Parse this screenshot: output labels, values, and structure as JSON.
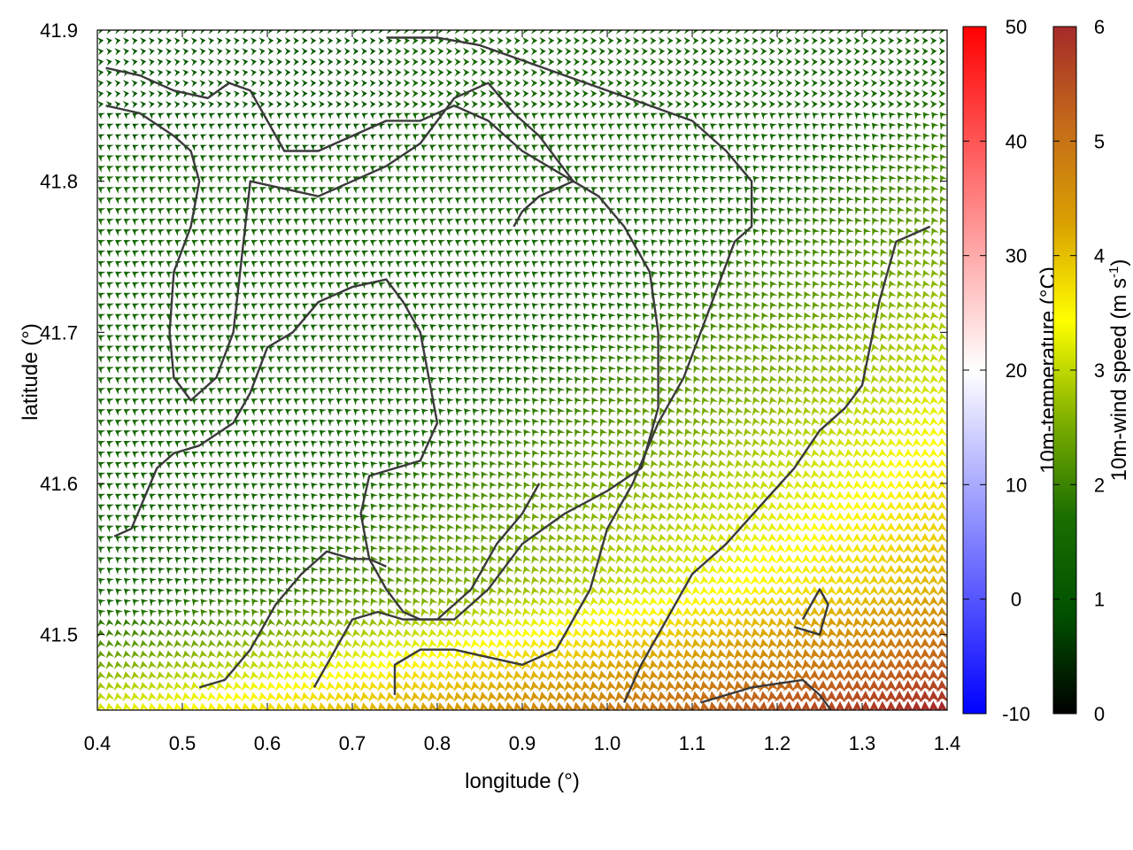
{
  "chart_data": {
    "type": "wind-vector-map",
    "xlabel": "longitude (°)",
    "ylabel": "latitude (°)",
    "xlim": [
      0.4,
      1.4
    ],
    "ylim": [
      41.45,
      41.9
    ],
    "xticks": [
      "0.4",
      "0.5",
      "0.6",
      "0.7",
      "0.8",
      "0.9",
      "1.0",
      "1.1",
      "1.2",
      "1.3",
      "1.4"
    ],
    "yticks": [
      "41.5",
      "41.6",
      "41.7",
      "41.8",
      "41.9"
    ],
    "colorbars": [
      {
        "label": "10m-temperature (°C)",
        "range": [
          -10,
          50
        ],
        "ticks": [
          "-10",
          "0",
          "10",
          "20",
          "30",
          "40",
          "50"
        ],
        "colors": [
          "#0000ff",
          "#ffffff",
          "#ff0000"
        ]
      },
      {
        "label_main": "10m-wind speed (m s",
        "label_sup": "-1",
        "label_end": ")",
        "range": [
          0,
          6
        ],
        "ticks": [
          "0",
          "1",
          "2",
          "3",
          "4",
          "5",
          "6"
        ],
        "colors": [
          "#000000",
          "#005000",
          "#1a6e00",
          "#80b000",
          "#ffff00",
          "#d9a000",
          "#c46a1a",
          "#a52a2a"
        ]
      }
    ],
    "wind_field": {
      "grid_lon_step": 0.01,
      "grid_lat_step": 0.007,
      "strong_wind_region": "south-east (speed up to ~6 m/s)",
      "weak_wind_region": "north-west (speed ~1-2 m/s)"
    },
    "contours": [
      [
        [
          0.41,
          41.875
        ],
        [
          0.45,
          41.87
        ],
        [
          0.49,
          41.86
        ],
        [
          0.53,
          41.855
        ],
        [
          0.555,
          41.865
        ],
        [
          0.58,
          41.86
        ],
        [
          0.6,
          41.84
        ],
        [
          0.62,
          41.82
        ],
        [
          0.66,
          41.82
        ],
        [
          0.7,
          41.83
        ],
        [
          0.74,
          41.84
        ],
        [
          0.78,
          41.84
        ],
        [
          0.82,
          41.85
        ],
        [
          0.86,
          41.84
        ],
        [
          0.9,
          41.82
        ],
        [
          0.96,
          41.8
        ]
      ],
      [
        [
          0.41,
          41.85
        ],
        [
          0.45,
          41.845
        ],
        [
          0.49,
          41.83
        ],
        [
          0.51,
          41.82
        ],
        [
          0.52,
          41.8
        ],
        [
          0.51,
          41.77
        ],
        [
          0.49,
          41.74
        ],
        [
          0.485,
          41.7
        ],
        [
          0.49,
          41.67
        ],
        [
          0.51,
          41.655
        ],
        [
          0.54,
          41.67
        ],
        [
          0.56,
          41.7
        ],
        [
          0.57,
          41.75
        ],
        [
          0.58,
          41.8
        ],
        [
          0.62,
          41.795
        ],
        [
          0.66,
          41.79
        ],
        [
          0.7,
          41.8
        ],
        [
          0.74,
          41.81
        ],
        [
          0.78,
          41.825
        ],
        [
          0.82,
          41.855
        ],
        [
          0.86,
          41.865
        ],
        [
          0.89,
          41.845
        ],
        [
          0.92,
          41.83
        ],
        [
          0.96,
          41.8
        ]
      ],
      [
        [
          0.42,
          41.565
        ],
        [
          0.44,
          41.57
        ],
        [
          0.47,
          41.61
        ],
        [
          0.49,
          41.62
        ],
        [
          0.52,
          41.625
        ],
        [
          0.56,
          41.64
        ],
        [
          0.58,
          41.66
        ],
        [
          0.6,
          41.69
        ],
        [
          0.63,
          41.7
        ],
        [
          0.66,
          41.72
        ],
        [
          0.7,
          41.73
        ],
        [
          0.74,
          41.735
        ],
        [
          0.76,
          41.72
        ],
        [
          0.78,
          41.7
        ],
        [
          0.79,
          41.67
        ],
        [
          0.8,
          41.64
        ],
        [
          0.78,
          41.615
        ],
        [
          0.75,
          41.61
        ],
        [
          0.72,
          41.605
        ],
        [
          0.71,
          41.58
        ],
        [
          0.72,
          41.55
        ],
        [
          0.74,
          41.53
        ],
        [
          0.76,
          41.515
        ],
        [
          0.78,
          41.51
        ],
        [
          0.82,
          41.51
        ],
        [
          0.86,
          41.53
        ],
        [
          0.9,
          41.56
        ],
        [
          0.95,
          41.58
        ],
        [
          1.0,
          41.595
        ],
        [
          1.04,
          41.61
        ],
        [
          1.06,
          41.65
        ],
        [
          1.06,
          41.7
        ],
        [
          1.05,
          41.74
        ],
        [
          1.02,
          41.77
        ],
        [
          0.99,
          41.79
        ],
        [
          0.96,
          41.8
        ],
        [
          0.92,
          41.79
        ],
        [
          0.9,
          41.78
        ],
        [
          0.89,
          41.77
        ]
      ],
      [
        [
          0.52,
          41.465
        ],
        [
          0.55,
          41.47
        ],
        [
          0.58,
          41.49
        ],
        [
          0.61,
          41.52
        ],
        [
          0.64,
          41.54
        ],
        [
          0.67,
          41.555
        ],
        [
          0.7,
          41.55
        ],
        [
          0.72,
          41.55
        ],
        [
          0.74,
          41.545
        ]
      ],
      [
        [
          0.655,
          41.465
        ],
        [
          0.67,
          41.48
        ],
        [
          0.7,
          41.51
        ],
        [
          0.73,
          41.515
        ],
        [
          0.76,
          41.51
        ],
        [
          0.8,
          41.51
        ],
        [
          0.84,
          41.53
        ],
        [
          0.87,
          41.56
        ],
        [
          0.9,
          41.58
        ],
        [
          0.92,
          41.6
        ]
      ],
      [
        [
          0.75,
          41.46
        ],
        [
          0.75,
          41.48
        ],
        [
          0.78,
          41.49
        ],
        [
          0.82,
          41.49
        ],
        [
          0.86,
          41.485
        ],
        [
          0.9,
          41.48
        ],
        [
          0.94,
          41.49
        ],
        [
          0.98,
          41.53
        ],
        [
          1.0,
          41.57
        ],
        [
          1.03,
          41.6
        ],
        [
          1.06,
          41.64
        ],
        [
          1.09,
          41.67
        ],
        [
          1.11,
          41.7
        ],
        [
          1.13,
          41.73
        ],
        [
          1.15,
          41.76
        ],
        [
          1.17,
          41.77
        ],
        [
          1.17,
          41.8
        ],
        [
          1.14,
          41.82
        ],
        [
          1.1,
          41.84
        ],
        [
          1.05,
          41.85
        ],
        [
          1.0,
          41.86
        ],
        [
          0.95,
          41.87
        ],
        [
          0.9,
          41.88
        ],
        [
          0.85,
          41.89
        ],
        [
          0.8,
          41.895
        ],
        [
          0.74,
          41.895
        ]
      ],
      [
        [
          1.02,
          41.455
        ],
        [
          1.04,
          41.48
        ],
        [
          1.07,
          41.51
        ],
        [
          1.1,
          41.54
        ],
        [
          1.14,
          41.56
        ],
        [
          1.18,
          41.585
        ],
        [
          1.22,
          41.61
        ],
        [
          1.25,
          41.635
        ],
        [
          1.28,
          41.65
        ],
        [
          1.3,
          41.665
        ],
        [
          1.32,
          41.72
        ],
        [
          1.34,
          41.76
        ],
        [
          1.36,
          41.765
        ],
        [
          1.38,
          41.77
        ]
      ],
      [
        [
          1.11,
          41.455
        ],
        [
          1.17,
          41.465
        ],
        [
          1.23,
          41.47
        ],
        [
          1.25,
          41.46
        ],
        [
          1.27,
          41.445
        ]
      ],
      [
        [
          1.22,
          41.505
        ],
        [
          1.25,
          41.5
        ],
        [
          1.26,
          41.52
        ],
        [
          1.25,
          41.53
        ],
        [
          1.23,
          41.51
        ]
      ]
    ]
  }
}
